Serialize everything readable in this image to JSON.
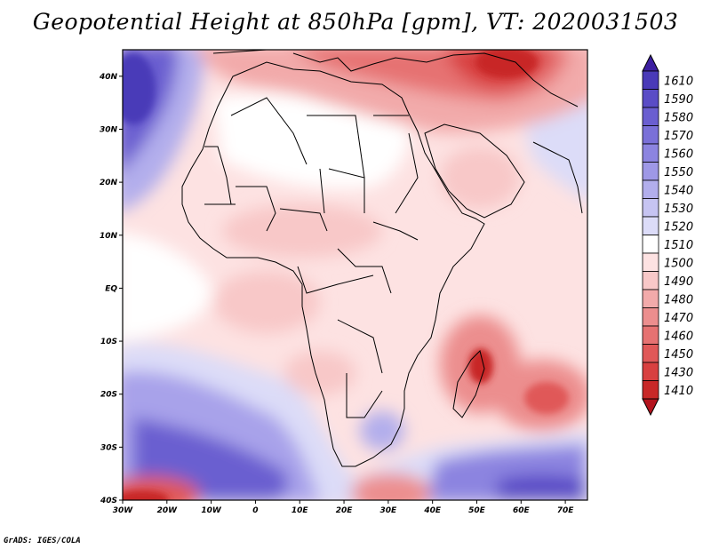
{
  "title": "Geopotential Height at 850hPa [gpm], VT: 2020031503",
  "credit": "GrADS: IGES/COLA",
  "map": {
    "lon_range": [
      -30,
      75
    ],
    "lat_range": [
      -40,
      45
    ],
    "lat_ticks": [
      {
        "lat": 40,
        "label": "40N"
      },
      {
        "lat": 30,
        "label": "30N"
      },
      {
        "lat": 20,
        "label": "20N"
      },
      {
        "lat": 10,
        "label": "10N"
      },
      {
        "lat": 0,
        "label": "EQ"
      },
      {
        "lat": -10,
        "label": "10S"
      },
      {
        "lat": -20,
        "label": "20S"
      },
      {
        "lat": -30,
        "label": "30S"
      },
      {
        "lat": -40,
        "label": "40S"
      }
    ],
    "lon_ticks": [
      {
        "lon": -30,
        "label": "30W"
      },
      {
        "lon": -20,
        "label": "20W"
      },
      {
        "lon": -10,
        "label": "10W"
      },
      {
        "lon": 0,
        "label": "0"
      },
      {
        "lon": 10,
        "label": "10E"
      },
      {
        "lon": 20,
        "label": "20E"
      },
      {
        "lon": 30,
        "label": "30E"
      },
      {
        "lon": 40,
        "label": "40E"
      },
      {
        "lon": 50,
        "label": "50E"
      },
      {
        "lon": 60,
        "label": "60E"
      },
      {
        "lon": 70,
        "label": "70E"
      }
    ]
  },
  "colorbar": {
    "top_color": "#3c1ea0",
    "bottom_color": "#b4141e",
    "levels": [
      {
        "label": "1610",
        "color": "#4a3ab8"
      },
      {
        "label": "1590",
        "color": "#5a4cc6"
      },
      {
        "label": "1580",
        "color": "#6a5ed0"
      },
      {
        "label": "1570",
        "color": "#7a70d8"
      },
      {
        "label": "1560",
        "color": "#8c84e0"
      },
      {
        "label": "1550",
        "color": "#9e98e6"
      },
      {
        "label": "1540",
        "color": "#b2aeec"
      },
      {
        "label": "1530",
        "color": "#c6c4f2"
      },
      {
        "label": "1520",
        "color": "#dcdcf8"
      },
      {
        "label": "1510",
        "color": "#ffffff"
      },
      {
        "label": "1500",
        "color": "#fde2e2"
      },
      {
        "label": "1490",
        "color": "#f8c8c8"
      },
      {
        "label": "1480",
        "color": "#f2aaaa"
      },
      {
        "label": "1470",
        "color": "#ec8e8e"
      },
      {
        "label": "1460",
        "color": "#e67272"
      },
      {
        "label": "1450",
        "color": "#e05858"
      },
      {
        "label": "1430",
        "color": "#d84040"
      },
      {
        "label": "1410",
        "color": "#c82828"
      }
    ]
  }
}
